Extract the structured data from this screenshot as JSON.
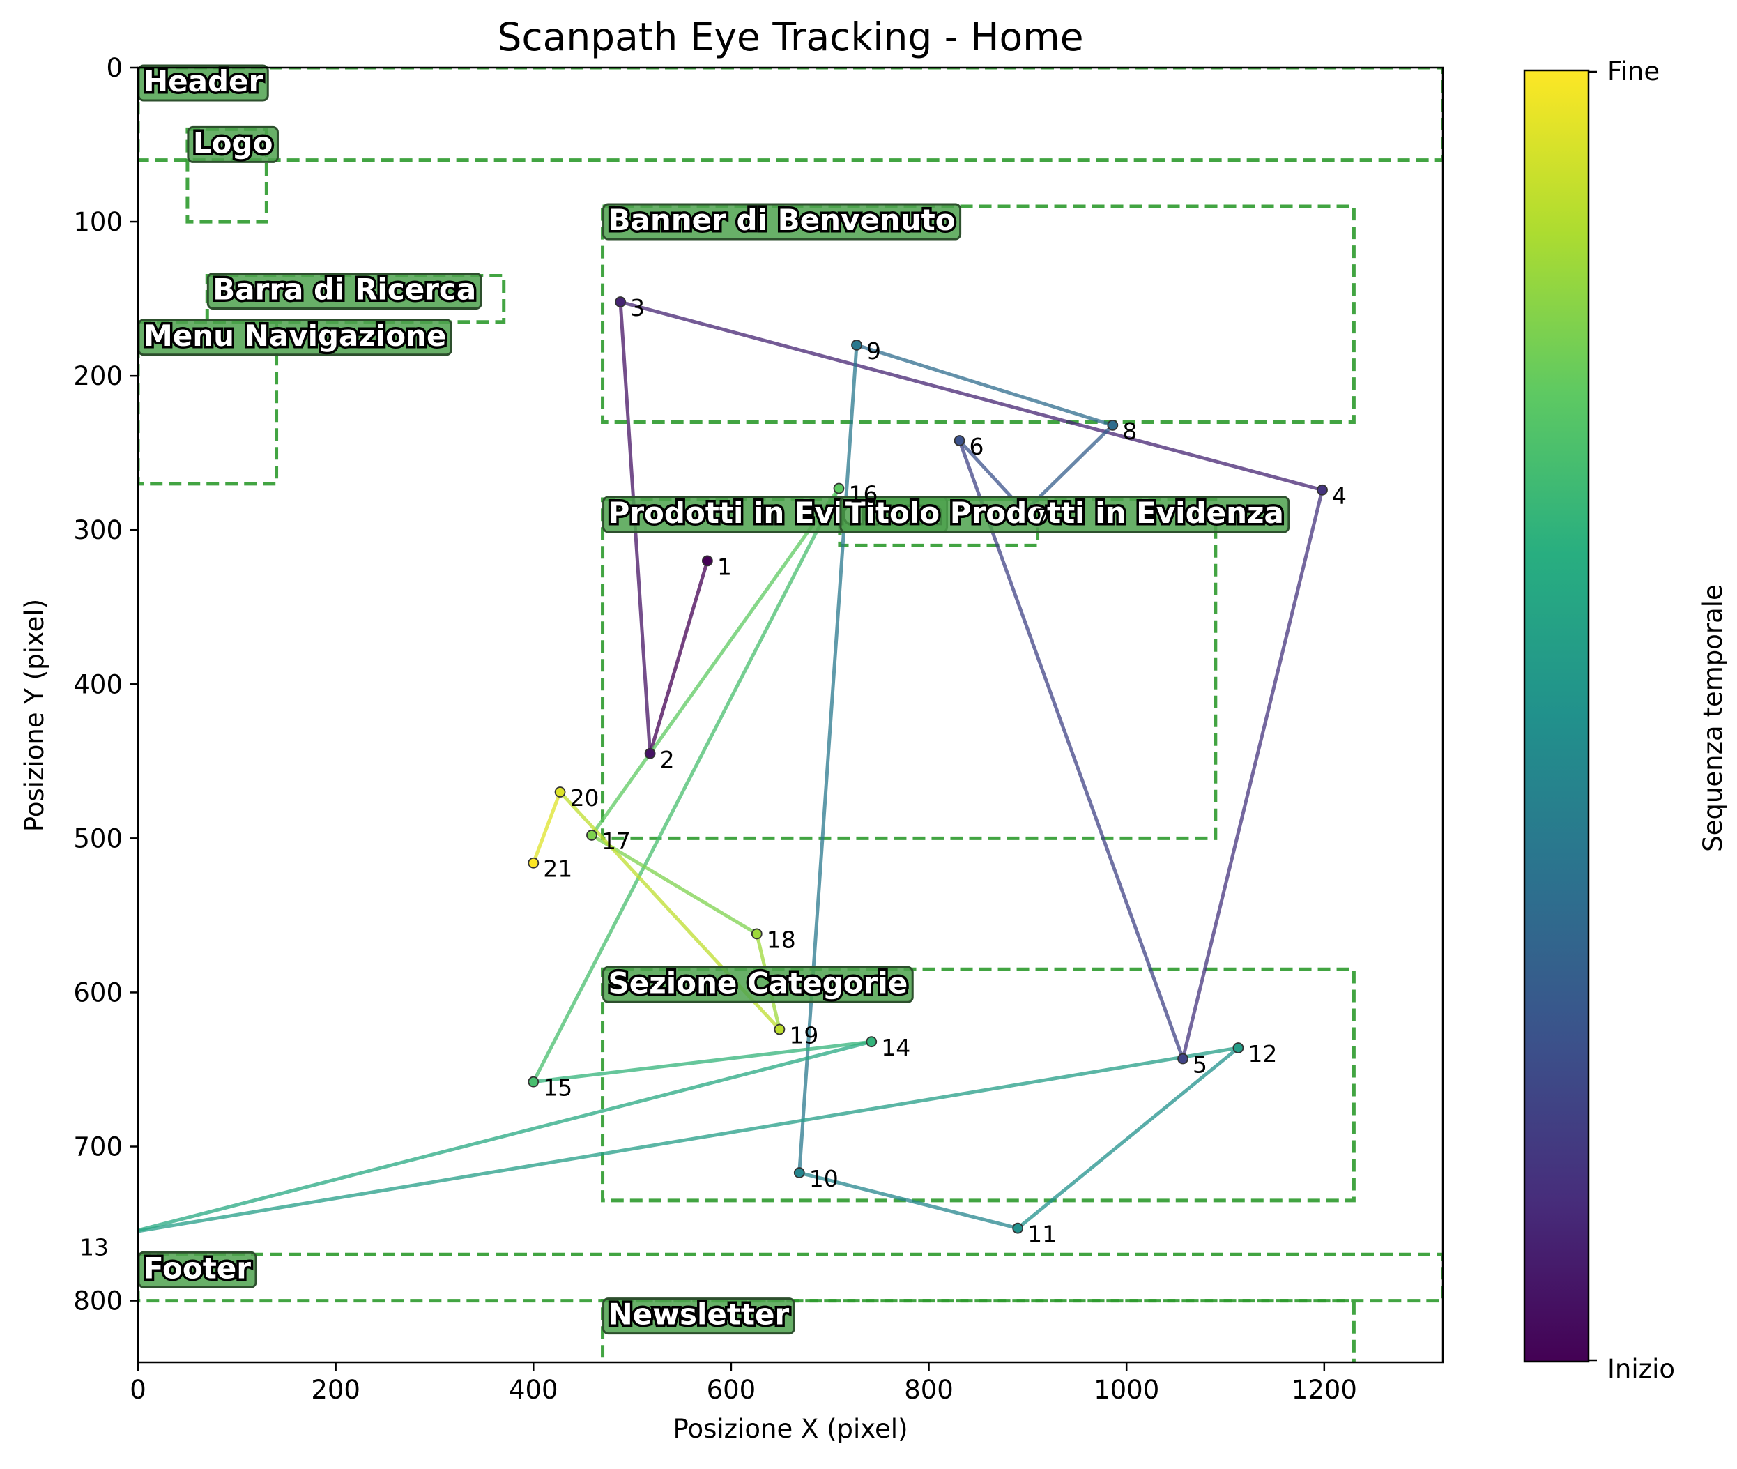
{
  "chart_data": {
    "type": "scatter",
    "title": "Scanpath Eye Tracking - Home",
    "xlabel": "Posizione X (pixel)",
    "ylabel": "Posizione Y (pixel)",
    "xlim": [
      0,
      1320
    ],
    "ylim": [
      840,
      0
    ],
    "y_inverted": true,
    "x_ticks": [
      0,
      200,
      400,
      600,
      800,
      1000,
      1200
    ],
    "y_ticks": [
      0,
      100,
      200,
      300,
      400,
      500,
      600,
      700,
      800
    ],
    "grid": false,
    "colormap": "viridis",
    "colorbar": {
      "label": "Sequenza temporale",
      "tick_labels": [
        "Inizio",
        "Fine"
      ]
    },
    "aoi_color": "#2e9a2e",
    "aoi_label_bg": "#4ea24e",
    "areas_of_interest": [
      {
        "label": "Header",
        "x0": 0,
        "y0": 0,
        "x1": 1320,
        "y1": 60
      },
      {
        "label": "Logo",
        "x0": 50,
        "y0": 40,
        "x1": 130,
        "y1": 100
      },
      {
        "label": "Barra di Ricerca",
        "x0": 70,
        "y0": 135,
        "x1": 370,
        "y1": 165
      },
      {
        "label": "Menu Navigazione",
        "x0": 0,
        "y0": 165,
        "x1": 140,
        "y1": 270
      },
      {
        "label": "Banner di Benvenuto",
        "x0": 470,
        "y0": 90,
        "x1": 1230,
        "y1": 230
      },
      {
        "label": "Prodotti in Evidenza",
        "x0": 470,
        "y0": 280,
        "x1": 1090,
        "y1": 500
      },
      {
        "label": "Titolo Prodotti in Evidenza",
        "x0": 710,
        "y0": 280,
        "x1": 910,
        "y1": 310
      },
      {
        "label": "Sezione Categorie",
        "x0": 470,
        "y0": 585,
        "x1": 1230,
        "y1": 735
      },
      {
        "label": "Footer",
        "x0": 0,
        "y0": 770,
        "x1": 1320,
        "y1": 800
      },
      {
        "label": "Newsletter",
        "x0": 470,
        "y0": 800,
        "x1": 1230,
        "y1": 850
      }
    ],
    "fixations": [
      {
        "n": 1,
        "x": 576,
        "y": 320
      },
      {
        "n": 2,
        "x": 518,
        "y": 445
      },
      {
        "n": 3,
        "x": 488,
        "y": 152
      },
      {
        "n": 4,
        "x": 1198,
        "y": 274
      },
      {
        "n": 5,
        "x": 1057,
        "y": 643
      },
      {
        "n": 6,
        "x": 831,
        "y": 242
      },
      {
        "n": 7,
        "x": 897,
        "y": 288
      },
      {
        "n": 8,
        "x": 986,
        "y": 232
      },
      {
        "n": 9,
        "x": 727,
        "y": 180
      },
      {
        "n": 10,
        "x": 669,
        "y": 717
      },
      {
        "n": 11,
        "x": 890,
        "y": 753
      },
      {
        "n": 12,
        "x": 1113,
        "y": 636
      },
      {
        "n": 13,
        "x": -10,
        "y": 756
      },
      {
        "n": 14,
        "x": 742,
        "y": 632
      },
      {
        "n": 15,
        "x": 400,
        "y": 658
      },
      {
        "n": 16,
        "x": 709,
        "y": 273
      },
      {
        "n": 17,
        "x": 459,
        "y": 498
      },
      {
        "n": 18,
        "x": 626,
        "y": 562
      },
      {
        "n": 19,
        "x": 649,
        "y": 624
      },
      {
        "n": 20,
        "x": 427,
        "y": 470
      },
      {
        "n": 21,
        "x": 400,
        "y": 516
      }
    ]
  }
}
